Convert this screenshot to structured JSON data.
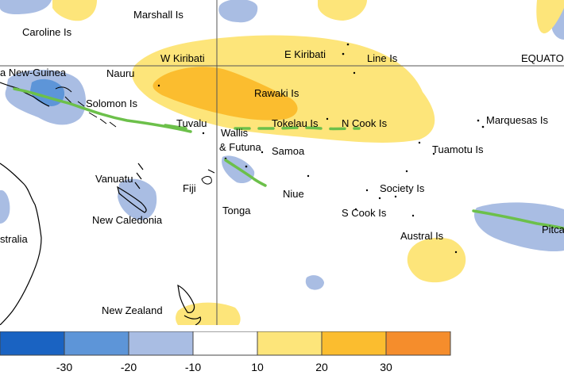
{
  "map": {
    "labels": [
      {
        "id": "marshall",
        "text": "Marshall Is"
      },
      {
        "id": "caroline",
        "text": "Caroline Is"
      },
      {
        "id": "w-kiribati",
        "text": "W Kiribati"
      },
      {
        "id": "e-kiribati",
        "text": "E Kiribati"
      },
      {
        "id": "line",
        "text": "Line Is"
      },
      {
        "id": "equator",
        "text": "EQUATOR"
      },
      {
        "id": "png",
        "text": "a New-Guinea"
      },
      {
        "id": "nauru",
        "text": "Nauru"
      },
      {
        "id": "rawaki",
        "text": "Rawaki Is"
      },
      {
        "id": "solomon",
        "text": "Solomon Is"
      },
      {
        "id": "tuvalu",
        "text": "Tuvalu"
      },
      {
        "id": "tokelau",
        "text": "Tokelau Is"
      },
      {
        "id": "ncook",
        "text": "N Cook Is"
      },
      {
        "id": "marquesas",
        "text": "Marquesas Is"
      },
      {
        "id": "wallis1",
        "text": "Wallis"
      },
      {
        "id": "wallis2",
        "text": "& Futuna"
      },
      {
        "id": "samoa",
        "text": "Samoa"
      },
      {
        "id": "tuamotu",
        "text": "Tuamotu Is"
      },
      {
        "id": "vanuatu",
        "text": "Vanuatu"
      },
      {
        "id": "fiji",
        "text": "Fiji"
      },
      {
        "id": "niue",
        "text": "Niue"
      },
      {
        "id": "society",
        "text": "Society Is"
      },
      {
        "id": "tonga",
        "text": "Tonga"
      },
      {
        "id": "scook",
        "text": "S Cook Is"
      },
      {
        "id": "newcal",
        "text": "New Caledonia"
      },
      {
        "id": "austral",
        "text": "Austral Is"
      },
      {
        "id": "pitcairn",
        "text": "Pitca"
      },
      {
        "id": "australia",
        "text": "stralia"
      },
      {
        "id": "nz",
        "text": "New Zealand"
      }
    ]
  },
  "legend": {
    "ticks": [
      "-30",
      "-20",
      "-10",
      "10",
      "20",
      "30"
    ],
    "colors": [
      "#1a63c2",
      "#5d95d8",
      "#a9bde3",
      "#ffffff",
      "#fde57a",
      "#fbbd2f",
      "#f58d2c"
    ]
  },
  "colors": {
    "light_blue": "#a9bde3",
    "mid_blue": "#5d95d8",
    "light_yellow": "#fde57a",
    "mid_orange": "#fbbd2f",
    "spcz_line": "#6cc04a",
    "grid": "#555555"
  }
}
